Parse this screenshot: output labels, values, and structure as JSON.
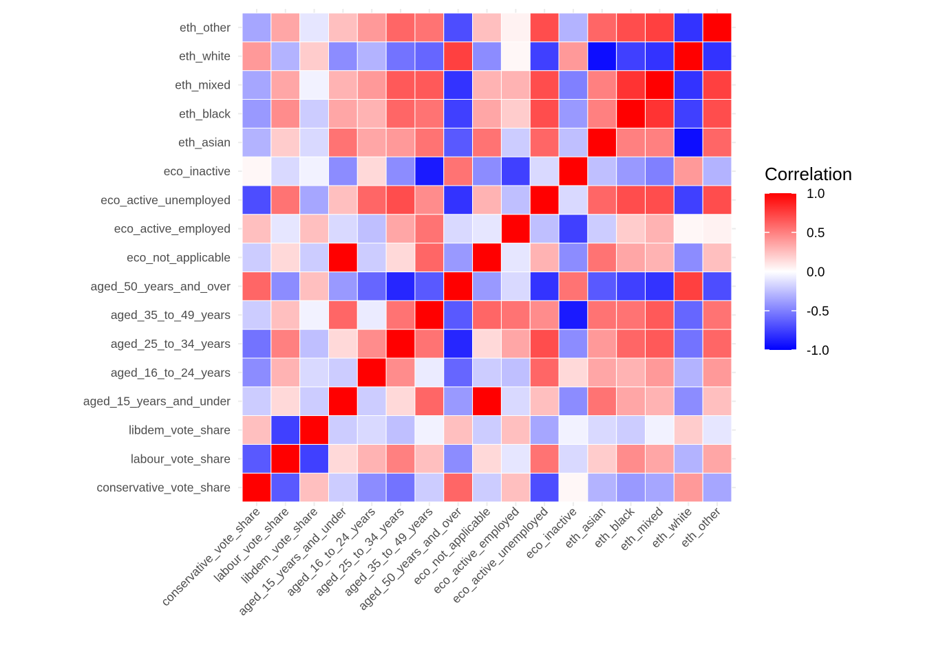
{
  "chart_data": {
    "type": "heatmap",
    "title": "",
    "xlabel": "",
    "ylabel": "",
    "variables": [
      "conservative_vote_share",
      "labour_vote_share",
      "libdem_vote_share",
      "aged_15_years_and_under",
      "aged_16_to_24_years",
      "aged_25_to_34_years",
      "aged_35_to_49_years",
      "aged_50_years_and_over",
      "eco_not_applicable",
      "eco_active_employed",
      "eco_active_unemployed",
      "eco_inactive",
      "eth_asian",
      "eth_black",
      "eth_mixed",
      "eth_white",
      "eth_other"
    ],
    "matrix": [
      [
        1.0,
        -0.65,
        0.25,
        -0.2,
        -0.45,
        -0.55,
        -0.2,
        0.6,
        -0.2,
        0.25,
        -0.7,
        0.03,
        -0.3,
        -0.4,
        -0.35,
        0.4,
        -0.35
      ],
      [
        -0.65,
        1.0,
        -0.75,
        0.15,
        0.3,
        0.5,
        0.25,
        -0.45,
        0.15,
        -0.1,
        0.55,
        -0.15,
        0.2,
        0.45,
        0.35,
        -0.3,
        0.35
      ],
      [
        0.25,
        -0.75,
        1.0,
        -0.2,
        -0.15,
        -0.25,
        -0.05,
        0.25,
        -0.2,
        0.25,
        -0.35,
        -0.05,
        -0.15,
        -0.2,
        -0.05,
        0.2,
        -0.1
      ],
      [
        -0.2,
        0.15,
        -0.2,
        1.0,
        -0.2,
        0.15,
        0.6,
        -0.4,
        1.0,
        -0.15,
        0.25,
        -0.45,
        0.55,
        0.35,
        0.3,
        -0.45,
        0.25
      ],
      [
        -0.45,
        0.3,
        -0.15,
        -0.2,
        1.0,
        0.45,
        -0.08,
        -0.6,
        -0.2,
        -0.25,
        0.6,
        0.15,
        0.35,
        0.3,
        0.4,
        -0.3,
        0.4
      ],
      [
        -0.55,
        0.5,
        -0.25,
        0.15,
        0.45,
        1.0,
        0.55,
        -0.85,
        0.15,
        0.35,
        0.7,
        -0.45,
        0.4,
        0.6,
        0.65,
        -0.55,
        0.6
      ],
      [
        -0.2,
        0.25,
        -0.05,
        0.6,
        -0.08,
        0.55,
        1.0,
        -0.65,
        0.6,
        0.55,
        0.45,
        -0.9,
        0.55,
        0.55,
        0.65,
        -0.6,
        0.55
      ],
      [
        0.6,
        -0.45,
        0.25,
        -0.4,
        -0.6,
        -0.85,
        -0.65,
        1.0,
        -0.4,
        -0.15,
        -0.8,
        0.55,
        -0.65,
        -0.75,
        -0.8,
        0.75,
        -0.7
      ],
      [
        -0.2,
        0.15,
        -0.2,
        1.0,
        -0.2,
        0.15,
        0.6,
        -0.4,
        1.0,
        -0.1,
        0.3,
        -0.45,
        0.55,
        0.35,
        0.3,
        -0.45,
        0.25
      ],
      [
        0.25,
        -0.1,
        0.25,
        -0.15,
        -0.25,
        0.35,
        0.55,
        -0.15,
        -0.1,
        1.0,
        -0.25,
        -0.75,
        -0.2,
        0.2,
        0.3,
        0.03,
        0.05
      ],
      [
        -0.7,
        0.55,
        -0.35,
        0.25,
        0.6,
        0.7,
        0.45,
        -0.8,
        0.3,
        -0.25,
        1.0,
        -0.15,
        0.6,
        0.7,
        0.7,
        -0.75,
        0.7
      ],
      [
        0.03,
        -0.15,
        -0.05,
        -0.45,
        0.15,
        -0.45,
        -0.9,
        0.55,
        -0.45,
        -0.75,
        -0.15,
        1.0,
        -0.25,
        -0.4,
        -0.5,
        0.4,
        -0.3
      ],
      [
        -0.3,
        0.2,
        -0.15,
        0.55,
        0.35,
        0.4,
        0.55,
        -0.65,
        0.55,
        -0.2,
        0.6,
        -0.25,
        1.0,
        0.5,
        0.5,
        -0.95,
        0.6
      ],
      [
        -0.4,
        0.45,
        -0.2,
        0.35,
        0.3,
        0.6,
        0.55,
        -0.75,
        0.35,
        0.2,
        0.7,
        -0.4,
        0.5,
        1.0,
        0.8,
        -0.75,
        0.7
      ],
      [
        -0.35,
        0.35,
        -0.05,
        0.3,
        0.4,
        0.65,
        0.65,
        -0.8,
        0.3,
        0.3,
        0.7,
        -0.5,
        0.5,
        0.8,
        1.0,
        -0.8,
        0.75
      ],
      [
        0.4,
        -0.3,
        0.2,
        -0.45,
        -0.3,
        -0.55,
        -0.6,
        0.75,
        -0.45,
        0.03,
        -0.75,
        0.4,
        -0.95,
        -0.75,
        -0.8,
        1.0,
        -0.8
      ],
      [
        -0.35,
        0.35,
        -0.1,
        0.25,
        0.4,
        0.6,
        0.55,
        -0.7,
        0.25,
        0.05,
        0.7,
        -0.3,
        0.6,
        0.7,
        0.75,
        -0.8,
        1.0
      ]
    ],
    "y_order": "bottom-to-top (first variable at bottom)",
    "legend": {
      "title": "Correlation",
      "position": "right",
      "range": [
        -1.0,
        1.0
      ],
      "ticks": [
        "1.0",
        "0.5",
        "0.0",
        "-0.5",
        "-1.0"
      ],
      "tick_values": [
        1.0,
        0.5,
        0.0,
        -0.5,
        -1.0
      ],
      "low_color": "#0000ff",
      "mid_color": "#ffffff",
      "high_color": "#ff0000"
    },
    "grid": true
  }
}
